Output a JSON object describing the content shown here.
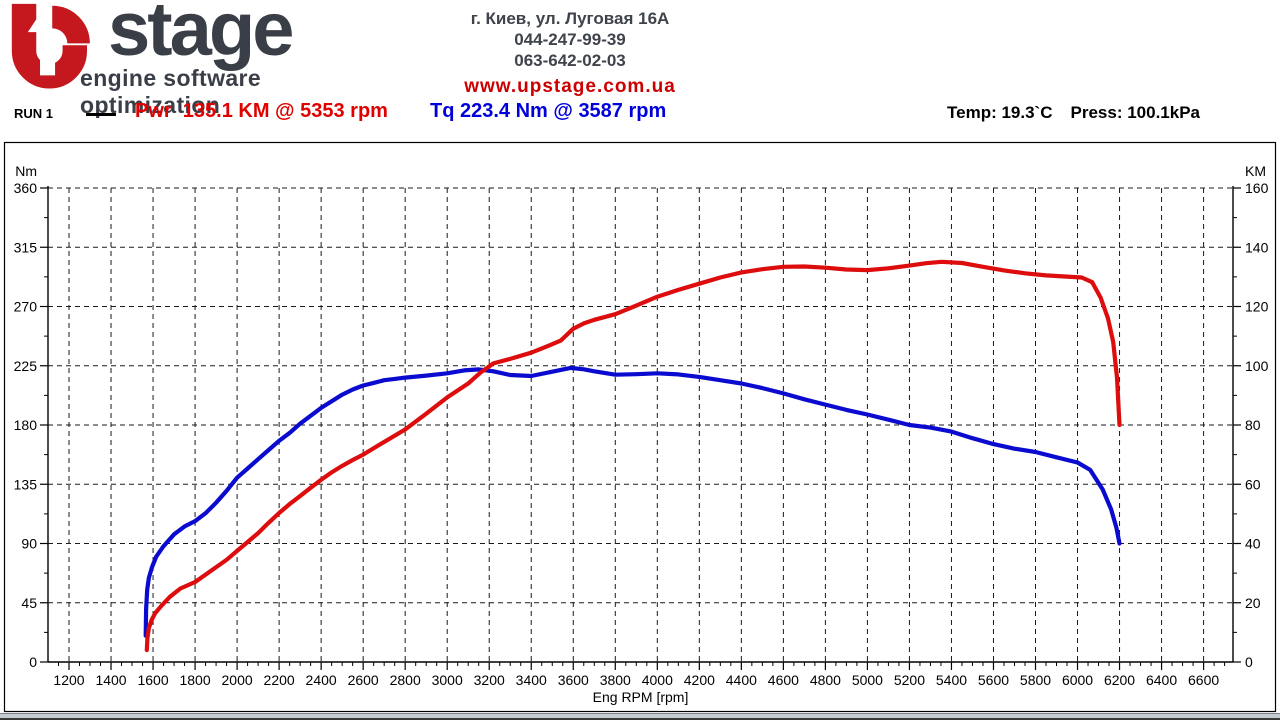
{
  "header": {
    "logo": {
      "wordmark": "stage",
      "tagline": "engine software optimization",
      "mark": "red letter U with white up arrow",
      "red": "#c4181e",
      "dark": "#3a3e47"
    },
    "contact": {
      "address": "г. Киев, ул. Луговая 16А",
      "phone1": "044-247-99-39",
      "phone2": "063-642-02-03",
      "website": "www.upstage.com.ua",
      "website_color": "#cc0000"
    }
  },
  "run_info": {
    "run_label": "RUN 1",
    "power_summary": "Pwr  135.1 KM @ 5353 rpm",
    "torque_summary": "Tq 223.4 Nm @ 3587 rpm",
    "temperature": "Temp: 19.3`C",
    "pressure": "Press: 100.1kPa",
    "power_color": "#e10000",
    "torque_color": "#0000dd"
  },
  "chart_data": {
    "type": "line",
    "xlabel": "Eng RPM [rpm]",
    "xlim": [
      1100,
      6740
    ],
    "x_ticks": [
      1200,
      1400,
      1600,
      1800,
      2000,
      2200,
      2400,
      2600,
      2800,
      3000,
      3200,
      3400,
      3600,
      3800,
      4000,
      4200,
      4400,
      4600,
      4800,
      5000,
      5200,
      5400,
      5600,
      5800,
      6000,
      6200,
      6400,
      6600
    ],
    "x_minor_step": 50,
    "grid": "dashed",
    "left_axis": {
      "label": "Nm",
      "min": 0,
      "max": 360,
      "ticks": [
        0,
        45,
        90,
        135,
        180,
        225,
        270,
        315,
        360
      ],
      "minor_step": 22.5
    },
    "right_axis": {
      "label": "KM",
      "min": 0,
      "max": 160,
      "ticks": [
        0,
        20,
        40,
        60,
        80,
        100,
        120,
        140,
        160
      ],
      "minor_step": 10
    },
    "peaks": {
      "power": "135.1 KM @ 5353 rpm",
      "torque": "223.4 Nm @ 3587 rpm"
    },
    "series": [
      {
        "name": "Torque (Nm)",
        "axis": "left",
        "color": "#0b0bd0",
        "points": [
          [
            1565,
            20
          ],
          [
            1567,
            40
          ],
          [
            1572,
            55
          ],
          [
            1580,
            64
          ],
          [
            1595,
            72
          ],
          [
            1615,
            80
          ],
          [
            1650,
            88
          ],
          [
            1700,
            97
          ],
          [
            1750,
            103
          ],
          [
            1800,
            107
          ],
          [
            1850,
            113
          ],
          [
            1900,
            121
          ],
          [
            1950,
            130
          ],
          [
            2000,
            140
          ],
          [
            2050,
            147
          ],
          [
            2100,
            154
          ],
          [
            2150,
            161
          ],
          [
            2200,
            168
          ],
          [
            2250,
            174
          ],
          [
            2300,
            181
          ],
          [
            2350,
            187
          ],
          [
            2400,
            193
          ],
          [
            2450,
            198
          ],
          [
            2500,
            203
          ],
          [
            2550,
            207
          ],
          [
            2600,
            210
          ],
          [
            2650,
            212
          ],
          [
            2700,
            214
          ],
          [
            2750,
            215
          ],
          [
            2800,
            216
          ],
          [
            2900,
            217.5
          ],
          [
            3000,
            219.3
          ],
          [
            3080,
            221.5
          ],
          [
            3150,
            222.2
          ],
          [
            3220,
            220.8
          ],
          [
            3300,
            218
          ],
          [
            3400,
            217.2
          ],
          [
            3500,
            220.5
          ],
          [
            3587,
            223.4
          ],
          [
            3650,
            222.3
          ],
          [
            3700,
            220.8
          ],
          [
            3800,
            218.2
          ],
          [
            3900,
            218.6
          ],
          [
            4000,
            219.3
          ],
          [
            4100,
            218.4
          ],
          [
            4200,
            216.5
          ],
          [
            4300,
            214
          ],
          [
            4400,
            211.5
          ],
          [
            4500,
            208
          ],
          [
            4600,
            204
          ],
          [
            4700,
            199.5
          ],
          [
            4800,
            195.5
          ],
          [
            4900,
            191.5
          ],
          [
            5000,
            188
          ],
          [
            5100,
            184
          ],
          [
            5200,
            180
          ],
          [
            5300,
            178
          ],
          [
            5400,
            175
          ],
          [
            5500,
            170
          ],
          [
            5600,
            165.5
          ],
          [
            5700,
            162
          ],
          [
            5800,
            159.5
          ],
          [
            5900,
            155.5
          ],
          [
            6000,
            151.5
          ],
          [
            6060,
            146
          ],
          [
            6120,
            131
          ],
          [
            6160,
            116
          ],
          [
            6185,
            102
          ],
          [
            6200,
            90
          ]
        ]
      },
      {
        "name": "Power (KM)",
        "axis": "right",
        "color": "#dd0d0d",
        "points": [
          [
            1570,
            4
          ],
          [
            1573,
            8
          ],
          [
            1580,
            11.5
          ],
          [
            1592,
            14
          ],
          [
            1610,
            16.5
          ],
          [
            1640,
            19
          ],
          [
            1680,
            22
          ],
          [
            1730,
            24.8
          ],
          [
            1800,
            27
          ],
          [
            1850,
            29.5
          ],
          [
            1900,
            32
          ],
          [
            1950,
            34.5
          ],
          [
            2000,
            37.5
          ],
          [
            2050,
            40.5
          ],
          [
            2100,
            43.5
          ],
          [
            2150,
            47
          ],
          [
            2200,
            50.3
          ],
          [
            2250,
            53.3
          ],
          [
            2300,
            56
          ],
          [
            2350,
            58.8
          ],
          [
            2400,
            61.5
          ],
          [
            2450,
            64
          ],
          [
            2500,
            66.2
          ],
          [
            2550,
            68.2
          ],
          [
            2600,
            70
          ],
          [
            2700,
            74.3
          ],
          [
            2800,
            78.5
          ],
          [
            2900,
            83.8
          ],
          [
            3000,
            89.3
          ],
          [
            3100,
            94
          ],
          [
            3160,
            97.8
          ],
          [
            3220,
            100.8
          ],
          [
            3300,
            102.3
          ],
          [
            3400,
            104.4
          ],
          [
            3480,
            106.7
          ],
          [
            3540,
            108.5
          ],
          [
            3600,
            112.5
          ],
          [
            3650,
            114.3
          ],
          [
            3700,
            115.5
          ],
          [
            3800,
            117.4
          ],
          [
            3900,
            120.3
          ],
          [
            4000,
            123.3
          ],
          [
            4100,
            125.6
          ],
          [
            4200,
            127.7
          ],
          [
            4300,
            129.8
          ],
          [
            4400,
            131.5
          ],
          [
            4500,
            132.6
          ],
          [
            4600,
            133.4
          ],
          [
            4700,
            133.5
          ],
          [
            4800,
            133.1
          ],
          [
            4900,
            132.5
          ],
          [
            5000,
            132.3
          ],
          [
            5100,
            132.9
          ],
          [
            5200,
            133.8
          ],
          [
            5280,
            134.6
          ],
          [
            5353,
            135.1
          ],
          [
            5450,
            134.7
          ],
          [
            5550,
            133.4
          ],
          [
            5650,
            132.2
          ],
          [
            5750,
            131.2
          ],
          [
            5850,
            130.5
          ],
          [
            5950,
            130.1
          ],
          [
            6020,
            129.8
          ],
          [
            6070,
            128.2
          ],
          [
            6110,
            123
          ],
          [
            6145,
            116
          ],
          [
            6170,
            108
          ],
          [
            6188,
            96
          ],
          [
            6200,
            80
          ]
        ]
      }
    ]
  }
}
